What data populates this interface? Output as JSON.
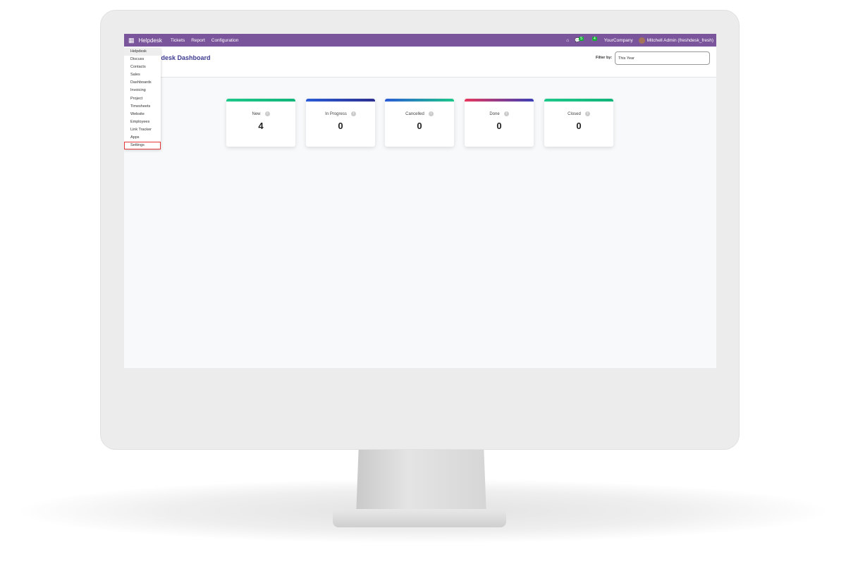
{
  "navbar": {
    "app": "Helpdesk",
    "menus": [
      "Tickets",
      "Report",
      "Configuration"
    ],
    "chat_badge": "5",
    "activity_badge": "4",
    "company": "YourCompany",
    "user": "Mitchell Admin (freshdesk_fresh)"
  },
  "page": {
    "title": "Helpdesk Dashboard",
    "title_visible": "pdesk Dashboard",
    "filter_label": "Filter by:",
    "filter_value": "This Year"
  },
  "app_menu": [
    "Helpdesk",
    "Discuss",
    "Contacts",
    "Sales",
    "Dashboards",
    "Invoicing",
    "Project",
    "Timesheets",
    "Website",
    "Employees",
    "Link Tracker",
    "Apps",
    "Settings"
  ],
  "cards": [
    {
      "label": "New",
      "value": "4",
      "bar": "linear-gradient(90deg,#1cc88a,#11b57a)"
    },
    {
      "label": "In Progress",
      "value": "0",
      "bar": "linear-gradient(90deg,#2a5bd7,#2c2f8f)"
    },
    {
      "label": "Cancelled",
      "value": "0",
      "bar": "linear-gradient(90deg,#2a5bd7,#1cc88a)"
    },
    {
      "label": "Done",
      "value": "0",
      "bar": "linear-gradient(90deg,#e8365d,#3b3fb6)"
    },
    {
      "label": "Closed",
      "value": "0",
      "bar": "linear-gradient(90deg,#1cc88a,#11b57a)"
    }
  ]
}
